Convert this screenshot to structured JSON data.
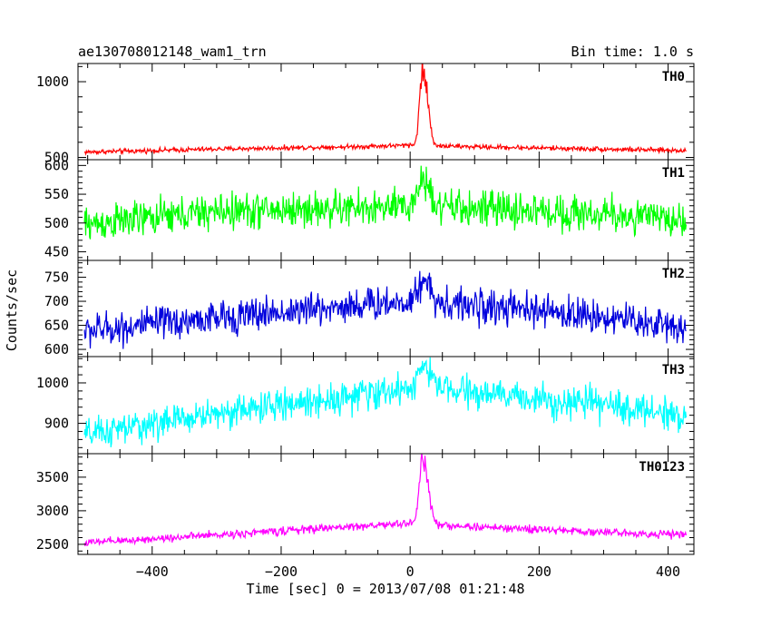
{
  "chart_data": {
    "type": "line",
    "title": "ae130708012148_wam1_trn",
    "bin_time_label": "Bin time: 1.0 s",
    "xlabel": "Time [sec] 0 = 2013/07/08 01:21:48",
    "ylabel": "Counts/sec",
    "xlim": [
      -515,
      440
    ],
    "x_ticks": [
      -400,
      -200,
      0,
      200,
      400
    ],
    "x_tick_labels": [
      "−400",
      "−200",
      "0",
      "200",
      "400"
    ],
    "x_data_range": [
      -505,
      428
    ],
    "burst_time": 20,
    "panels": [
      {
        "name": "TH0",
        "color": "#ff0000",
        "ylim": [
          485,
          1120
        ],
        "y_ticks": [
          500,
          1000
        ],
        "y_tick_labels": [
          "500",
          "1000"
        ],
        "baseline": [
          [
            -505,
            535
          ],
          [
            -300,
            555
          ],
          [
            -100,
            570
          ],
          [
            0,
            580
          ],
          [
            100,
            570
          ],
          [
            300,
            555
          ],
          [
            428,
            545
          ]
        ],
        "noise": 12,
        "burst": {
          "peak": 1100,
          "width": 7
        },
        "tail_level": [
          580,
          535,
          530
        ]
      },
      {
        "name": "TH1",
        "color": "#00ff00",
        "ylim": [
          435,
          610
        ],
        "y_ticks": [
          450,
          500,
          550,
          600
        ],
        "y_tick_labels": [
          "450",
          "500",
          "550",
          "600"
        ],
        "baseline": [
          [
            -505,
            497
          ],
          [
            -300,
            520
          ],
          [
            -100,
            525
          ],
          [
            0,
            527
          ],
          [
            100,
            525
          ],
          [
            300,
            515
          ],
          [
            428,
            505
          ]
        ],
        "noise": 24,
        "burst": {
          "peak": 575,
          "width": 12
        }
      },
      {
        "name": "TH2",
        "color": "#0000dd",
        "ylim": [
          585,
          785
        ],
        "y_ticks": [
          600,
          650,
          700,
          750
        ],
        "y_tick_labels": [
          "600",
          "650",
          "700",
          "750"
        ],
        "baseline": [
          [
            -505,
            638
          ],
          [
            -300,
            665
          ],
          [
            -100,
            690
          ],
          [
            0,
            700
          ],
          [
            100,
            690
          ],
          [
            300,
            668
          ],
          [
            428,
            645
          ]
        ],
        "noise": 27,
        "burst": {
          "peak": 745,
          "width": 12
        }
      },
      {
        "name": "TH3",
        "color": "#00ffff",
        "ylim": [
          825,
          1065
        ],
        "y_ticks": [
          900,
          1000
        ],
        "y_tick_labels": [
          "900",
          "1000"
        ],
        "baseline": [
          [
            -505,
            870
          ],
          [
            -300,
            925
          ],
          [
            -100,
            965
          ],
          [
            0,
            985
          ],
          [
            100,
            975
          ],
          [
            300,
            945
          ],
          [
            428,
            920
          ]
        ],
        "noise": 30,
        "burst": {
          "peak": 1040,
          "width": 12
        }
      },
      {
        "name": "TH0123",
        "color": "#ff00ff",
        "ylim": [
          2350,
          3850
        ],
        "y_ticks": [
          2500,
          3000,
          3500
        ],
        "y_tick_labels": [
          "2500",
          "3000",
          "3500"
        ],
        "baseline": [
          [
            -505,
            2520
          ],
          [
            -300,
            2640
          ],
          [
            -100,
            2760
          ],
          [
            0,
            2810
          ],
          [
            100,
            2760
          ],
          [
            300,
            2680
          ],
          [
            428,
            2640
          ]
        ],
        "noise": 45,
        "burst": {
          "peak": 3780,
          "width": 8
        }
      }
    ],
    "grid": false,
    "legend": "none"
  }
}
